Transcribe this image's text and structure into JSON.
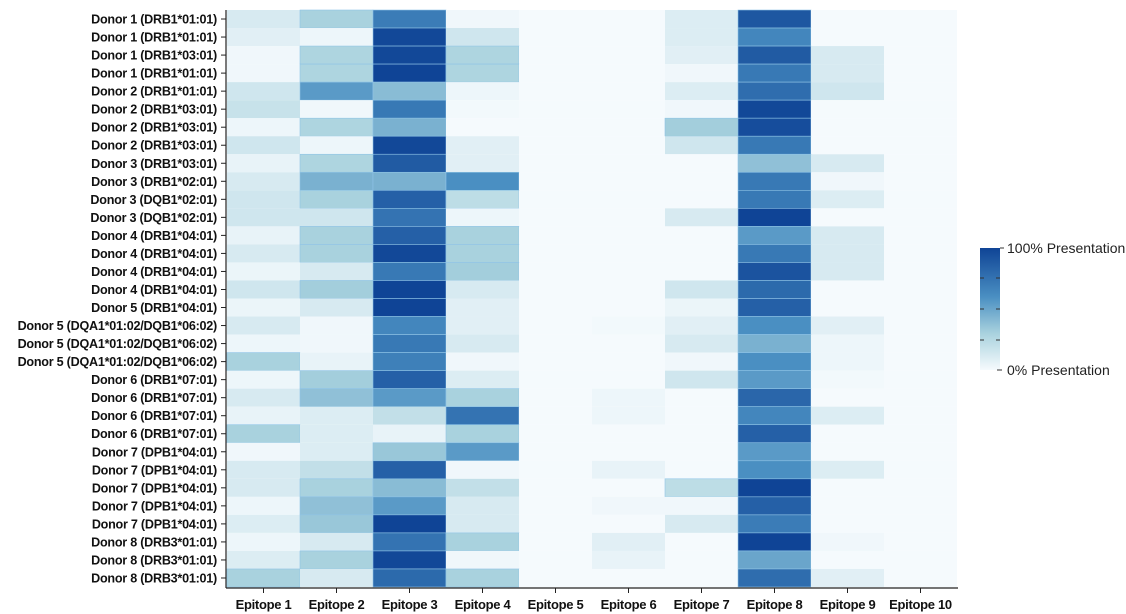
{
  "chart_data": {
    "type": "heatmap",
    "title": "",
    "xlabel": "",
    "ylabel": "",
    "columns": [
      "Epitope 1",
      "Epitope 2",
      "Epitope 3",
      "Epitope 4",
      "Epitope 5",
      "Epitope 6",
      "Epitope 7",
      "Epitope 8",
      "Epitope 9",
      "Epitope 10"
    ],
    "rows": [
      "Donor 1 (DRB1*01:01)",
      "Donor 1 (DRB1*01:01)",
      "Donor 1 (DRB1*03:01)",
      "Donor 1 (DRB1*01:01)",
      "Donor 2 (DRB1*01:01)",
      "Donor 2 (DRB1*03:01)",
      "Donor 2 (DRB1*03:01)",
      "Donor 2 (DRB1*03:01)",
      "Donor 3 (DRB1*03:01)",
      "Donor 3 (DRB1*02:01)",
      "Donor 3 (DQB1*02:01)",
      "Donor 3 (DQB1*02:01)",
      "Donor 4 (DRB1*04:01)",
      "Donor 4 (DRB1*04:01)",
      "Donor 4 (DRB1*04:01)",
      "Donor 4 (DRB1*04:01)",
      "Donor 5 (DRB1*04:01)",
      "Donor 5 (DQA1*01:02/DQB1*06:02)",
      "Donor 5 (DQA1*01:02/DQB1*06:02)",
      "Donor 5 (DQA1*01:02/DQB1*06:02)",
      "Donor 6 (DRB1*07:01)",
      "Donor 6 (DRB1*07:01)",
      "Donor 6 (DRB1*07:01)",
      "Donor 6 (DRB1*07:01)",
      "Donor 7 (DPB1*04:01)",
      "Donor 7 (DPB1*04:01)",
      "Donor 7 (DPB1*04:01)",
      "Donor 7 (DPB1*04:01)",
      "Donor 7 (DPB1*04:01)",
      "Donor 8 (DRB3*01:01)",
      "Donor 8 (DRB3*01:01)",
      "Donor 8 (DRB3*01:01)"
    ],
    "values": [
      [
        0.12,
        0.3,
        0.7,
        0.02,
        0,
        0,
        0.1,
        0.9,
        0,
        0
      ],
      [
        0.08,
        0.03,
        0.98,
        0.15,
        0,
        0,
        0.1,
        0.65,
        0,
        0
      ],
      [
        0.02,
        0.28,
        0.98,
        0.28,
        0,
        0,
        0.08,
        0.88,
        0.12,
        0
      ],
      [
        0.02,
        0.28,
        1.0,
        0.28,
        0,
        0,
        0.02,
        0.72,
        0.12,
        0
      ],
      [
        0.15,
        0.55,
        0.4,
        0.03,
        0,
        0,
        0.1,
        0.78,
        0.15,
        0
      ],
      [
        0.18,
        0.02,
        0.72,
        0.01,
        0,
        0,
        0.02,
        0.98,
        0,
        0
      ],
      [
        0.03,
        0.28,
        0.45,
        0,
        0,
        0,
        0.32,
        0.95,
        0,
        0
      ],
      [
        0.15,
        0.03,
        0.98,
        0.08,
        0,
        0,
        0.15,
        0.72,
        0,
        0
      ],
      [
        0.05,
        0.28,
        0.88,
        0.08,
        0,
        0,
        0,
        0.38,
        0.12,
        0
      ],
      [
        0.12,
        0.45,
        0.45,
        0.6,
        0,
        0,
        0,
        0.72,
        0.02,
        0
      ],
      [
        0.15,
        0.3,
        0.85,
        0.22,
        0,
        0,
        0,
        0.72,
        0.1,
        0
      ],
      [
        0.15,
        0.15,
        0.75,
        0.03,
        0,
        0,
        0.12,
        1.0,
        0,
        0
      ],
      [
        0.05,
        0.3,
        0.85,
        0.3,
        0,
        0,
        0,
        0.55,
        0.12,
        0
      ],
      [
        0.12,
        0.3,
        0.98,
        0.3,
        0,
        0,
        0,
        0.72,
        0.12,
        0
      ],
      [
        0.04,
        0.12,
        0.72,
        0.32,
        0,
        0,
        0,
        0.92,
        0.12,
        0
      ],
      [
        0.15,
        0.32,
        1.0,
        0.12,
        0,
        0,
        0.15,
        0.8,
        0,
        0
      ],
      [
        0.04,
        0.12,
        1.0,
        0.08,
        0,
        0,
        0.04,
        0.85,
        0,
        0
      ],
      [
        0.12,
        0.02,
        0.65,
        0.08,
        0,
        0.01,
        0.08,
        0.6,
        0.08,
        0
      ],
      [
        0.03,
        0.02,
        0.72,
        0.12,
        0,
        0,
        0.12,
        0.45,
        0.03,
        0
      ],
      [
        0.3,
        0.05,
        0.68,
        0.02,
        0,
        0,
        0.02,
        0.6,
        0.03,
        0
      ],
      [
        0.03,
        0.32,
        0.85,
        0.1,
        0,
        0,
        0.15,
        0.55,
        0.01,
        0
      ],
      [
        0.12,
        0.38,
        0.55,
        0.3,
        0,
        0.03,
        0,
        0.82,
        0,
        0
      ],
      [
        0.05,
        0.1,
        0.2,
        0.75,
        0,
        0.03,
        0,
        0.65,
        0.1,
        0
      ],
      [
        0.3,
        0.1,
        0.05,
        0.3,
        0,
        0,
        0,
        0.85,
        0,
        0
      ],
      [
        0.02,
        0.1,
        0.35,
        0.55,
        0,
        0,
        0,
        0.55,
        0,
        0
      ],
      [
        0.12,
        0.2,
        0.85,
        0.02,
        0,
        0.05,
        0,
        0.6,
        0.1,
        0
      ],
      [
        0.12,
        0.3,
        0.4,
        0.2,
        0,
        0,
        0.22,
        1.0,
        0,
        0
      ],
      [
        0.03,
        0.38,
        0.55,
        0.12,
        0,
        0.02,
        0.02,
        0.85,
        0,
        0
      ],
      [
        0.1,
        0.35,
        1.0,
        0.12,
        0,
        0,
        0.12,
        0.7,
        0,
        0
      ],
      [
        0.03,
        0.12,
        0.75,
        0.3,
        0,
        0.08,
        0,
        1.0,
        0.02,
        0
      ],
      [
        0.1,
        0.3,
        0.98,
        0.02,
        0,
        0.05,
        0,
        0.5,
        0,
        0
      ],
      [
        0.3,
        0.12,
        0.8,
        0.3,
        0,
        0,
        0,
        0.78,
        0.08,
        0
      ]
    ],
    "value_range": [
      0,
      1
    ],
    "colorscale": [
      "#f5fafd",
      "#a9d2de",
      "#4a8fc2",
      "#0f4496"
    ],
    "legend": {
      "max_label": "100% Presentation",
      "min_label": "0% Presentation",
      "placement": "right"
    },
    "grid": false
  }
}
